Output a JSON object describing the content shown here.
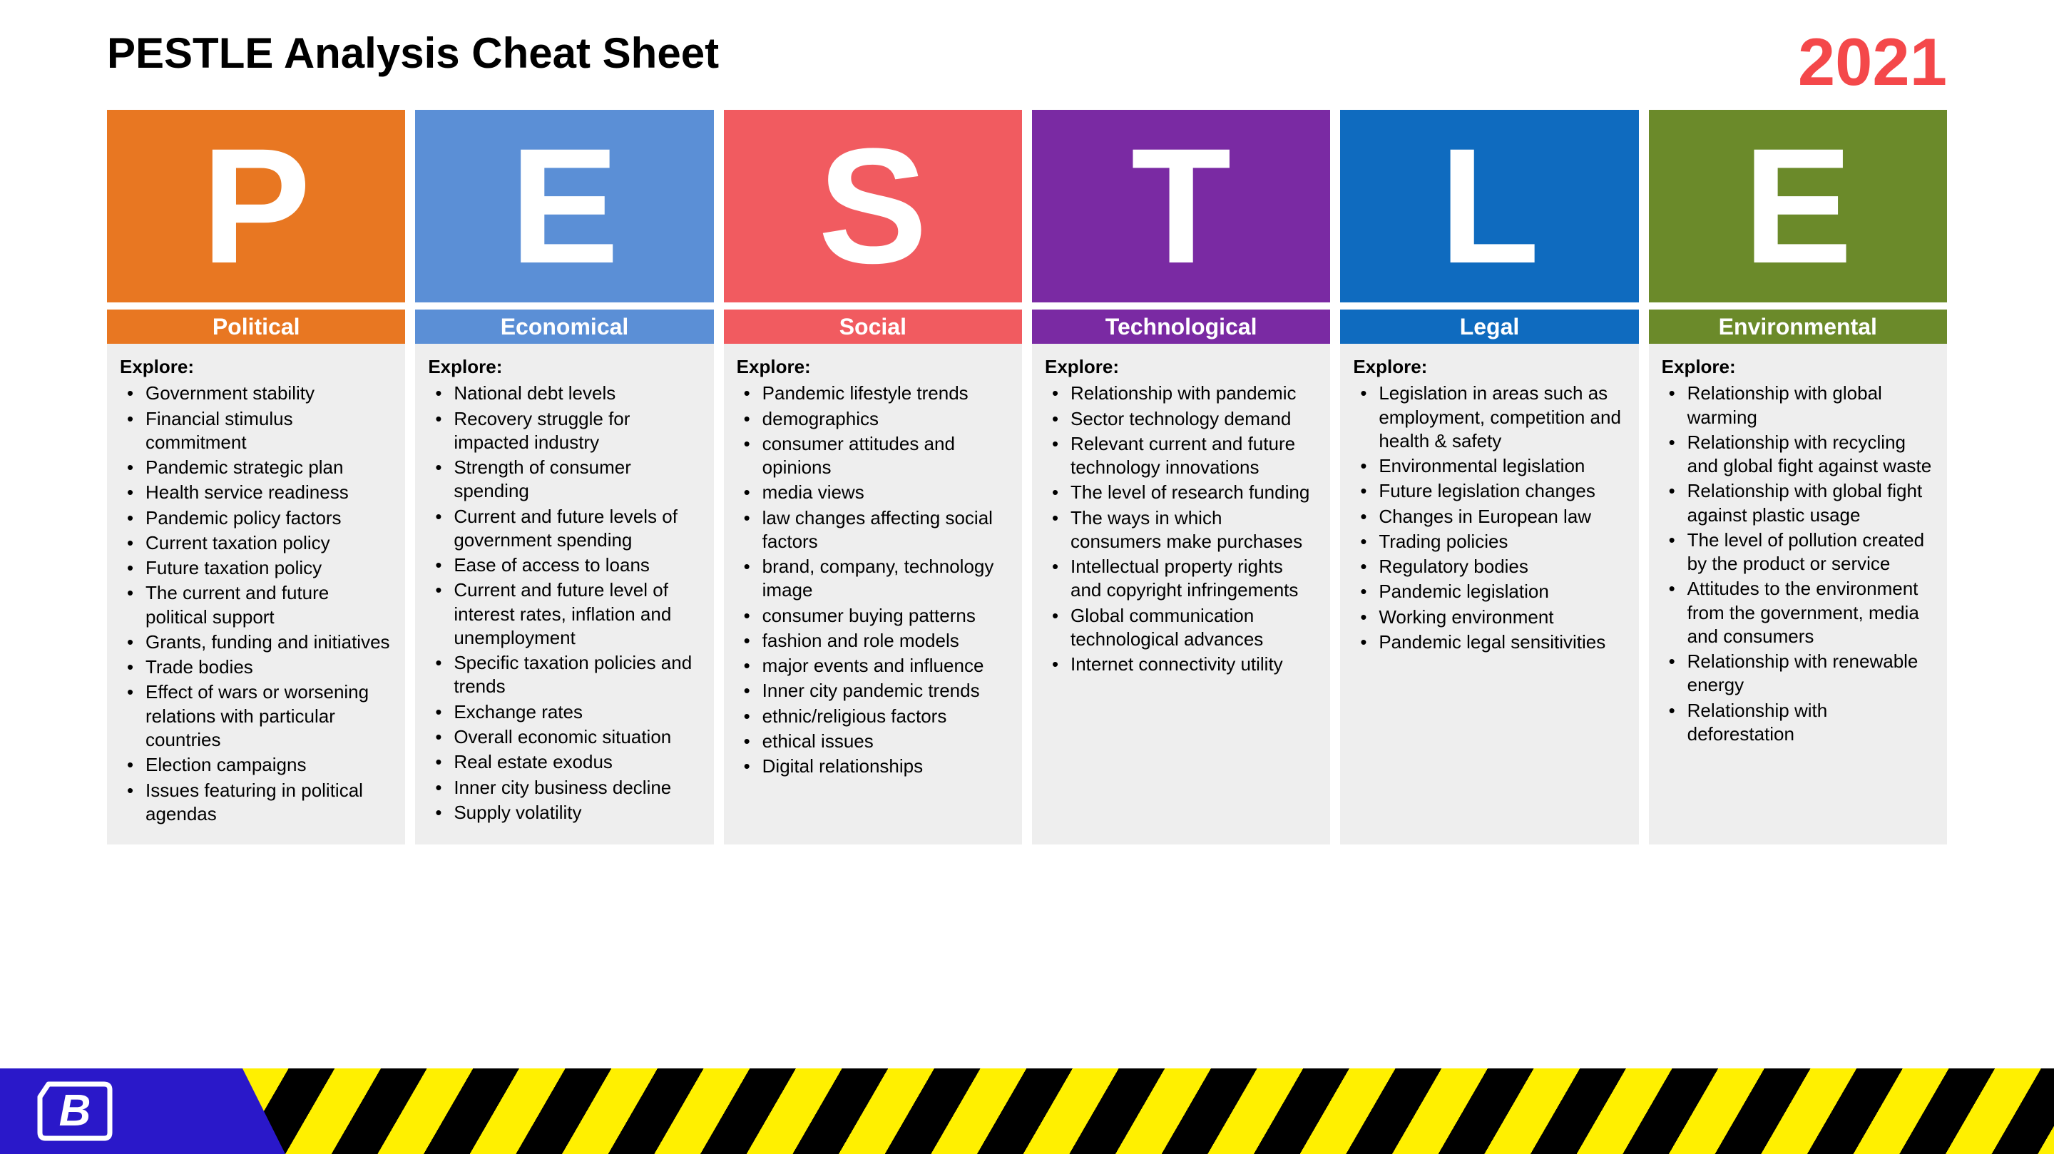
{
  "title": "PESTLE Analysis Cheat Sheet",
  "year": "2021",
  "year_color": "#f4484a",
  "explore_label": "Explore:",
  "footer": {
    "logo_bg": "#2a18c9",
    "hazard_yellow": "#fff000",
    "hazard_black": "#000000",
    "logo_letter": "B"
  },
  "columns": [
    {
      "letter": "P",
      "label": "Political",
      "color": "#e87722",
      "items": [
        "Government stability",
        "Financial stimulus commitment",
        "Pandemic strategic plan",
        "Health service readiness",
        "Pandemic policy factors",
        "Current taxation policy",
        "Future taxation policy",
        "The current and future political support",
        "Grants, funding and initiatives",
        "Trade bodies",
        "Effect of wars or worsening relations with particular countries",
        "Election campaigns",
        "Issues featuring in political agendas"
      ]
    },
    {
      "letter": "E",
      "label": "Economical",
      "color": "#5b8fd6",
      "items": [
        "National debt levels",
        "Recovery struggle for impacted industry",
        "Strength of consumer spending",
        "Current and future levels of government spending",
        "Ease of access to loans",
        "Current and future level of interest rates, inflation and unemployment",
        "Specific taxation policies and trends",
        "Exchange rates",
        "Overall economic situation",
        "Real estate exodus",
        "Inner city business decline",
        "Supply volatility"
      ]
    },
    {
      "letter": "S",
      "label": "Social",
      "color": "#f15b60",
      "items": [
        "Pandemic lifestyle trends",
        "demographics",
        "consumer attitudes and opinions",
        "media views",
        "law changes affecting social factors",
        "brand, company, technology image",
        "consumer buying patterns",
        "fashion and role models",
        "major events and influence",
        "Inner city pandemic trends",
        "ethnic/religious factors",
        "ethical issues",
        "Digital relationships"
      ]
    },
    {
      "letter": "T",
      "label": "Technological",
      "color": "#7a2aa3",
      "items": [
        "Relationship with pandemic",
        "Sector technology demand",
        "Relevant current and future technology innovations",
        "The level of research funding",
        "The ways in which consumers make purchases",
        "Intellectual property rights and copyright infringements",
        "Global communication technological advances",
        "Internet connectivity utility"
      ]
    },
    {
      "letter": "L",
      "label": "Legal",
      "color": "#0f6bbf",
      "items": [
        "Legislation in areas such as employment, competition and health & safety",
        "Environmental legislation",
        "Future legislation changes",
        "Changes in European law",
        "Trading policies",
        "Regulatory bodies",
        "Pandemic legislation",
        "Working environment",
        "Pandemic legal sensitivities"
      ]
    },
    {
      "letter": "E",
      "label": "Environmental",
      "color": "#6b8a2a",
      "items": [
        "Relationship with global warming",
        "Relationship with recycling and global fight against waste",
        "Relationship with global fight against plastic usage",
        "The level of pollution created by the product or service",
        "Attitudes to the environment from the government, media and consumers",
        "Relationship with renewable energy",
        "Relationship with deforestation"
      ]
    }
  ]
}
